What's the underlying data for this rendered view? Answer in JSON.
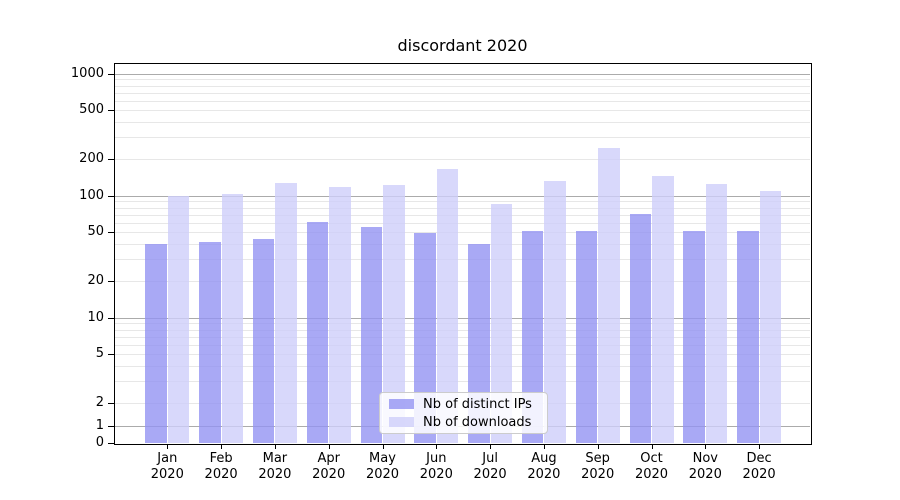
{
  "title": "discordant 2020",
  "colors": {
    "ips_bar": "rgba(148,148,242,0.8)",
    "downloads_bar": "rgba(206,206,250,0.8)",
    "major_grid": "#ababab",
    "minor_grid": "#e7e7e7",
    "axis": "#000000",
    "legend_border": "#cccccc"
  },
  "legend": {
    "items": [
      {
        "label": "Nb of distinct IPs",
        "color": "rgba(148,148,242,0.8)"
      },
      {
        "label": "Nb of downloads",
        "color": "rgba(206,206,250,0.8)"
      }
    ]
  },
  "chart_data": {
    "type": "bar",
    "title": "discordant 2020",
    "categories": [
      "Jan 2020",
      "Feb 2020",
      "Mar 2020",
      "Apr 2020",
      "May 2020",
      "Jun 2020",
      "Jul 2020",
      "Aug 2020",
      "Sep 2020",
      "Oct 2020",
      "Nov 2020",
      "Dec 2020"
    ],
    "series": [
      {
        "name": "Nb of distinct IPs",
        "values": [
          40,
          42,
          44,
          61,
          55,
          49,
          40,
          51,
          51,
          71,
          51,
          51
        ]
      },
      {
        "name": "Nb of downloads",
        "values": [
          100,
          104,
          126,
          117,
          122,
          167,
          85,
          131,
          247,
          145,
          125,
          110
        ]
      }
    ],
    "xlabel": "",
    "ylabel": "",
    "yscale": "symlog",
    "y_ticks": [
      1000,
      500,
      200,
      100,
      50,
      20,
      10,
      5,
      2,
      1,
      0
    ],
    "ylim": [
      0,
      1400
    ],
    "grid": "both",
    "legend_position": "lower-center"
  }
}
